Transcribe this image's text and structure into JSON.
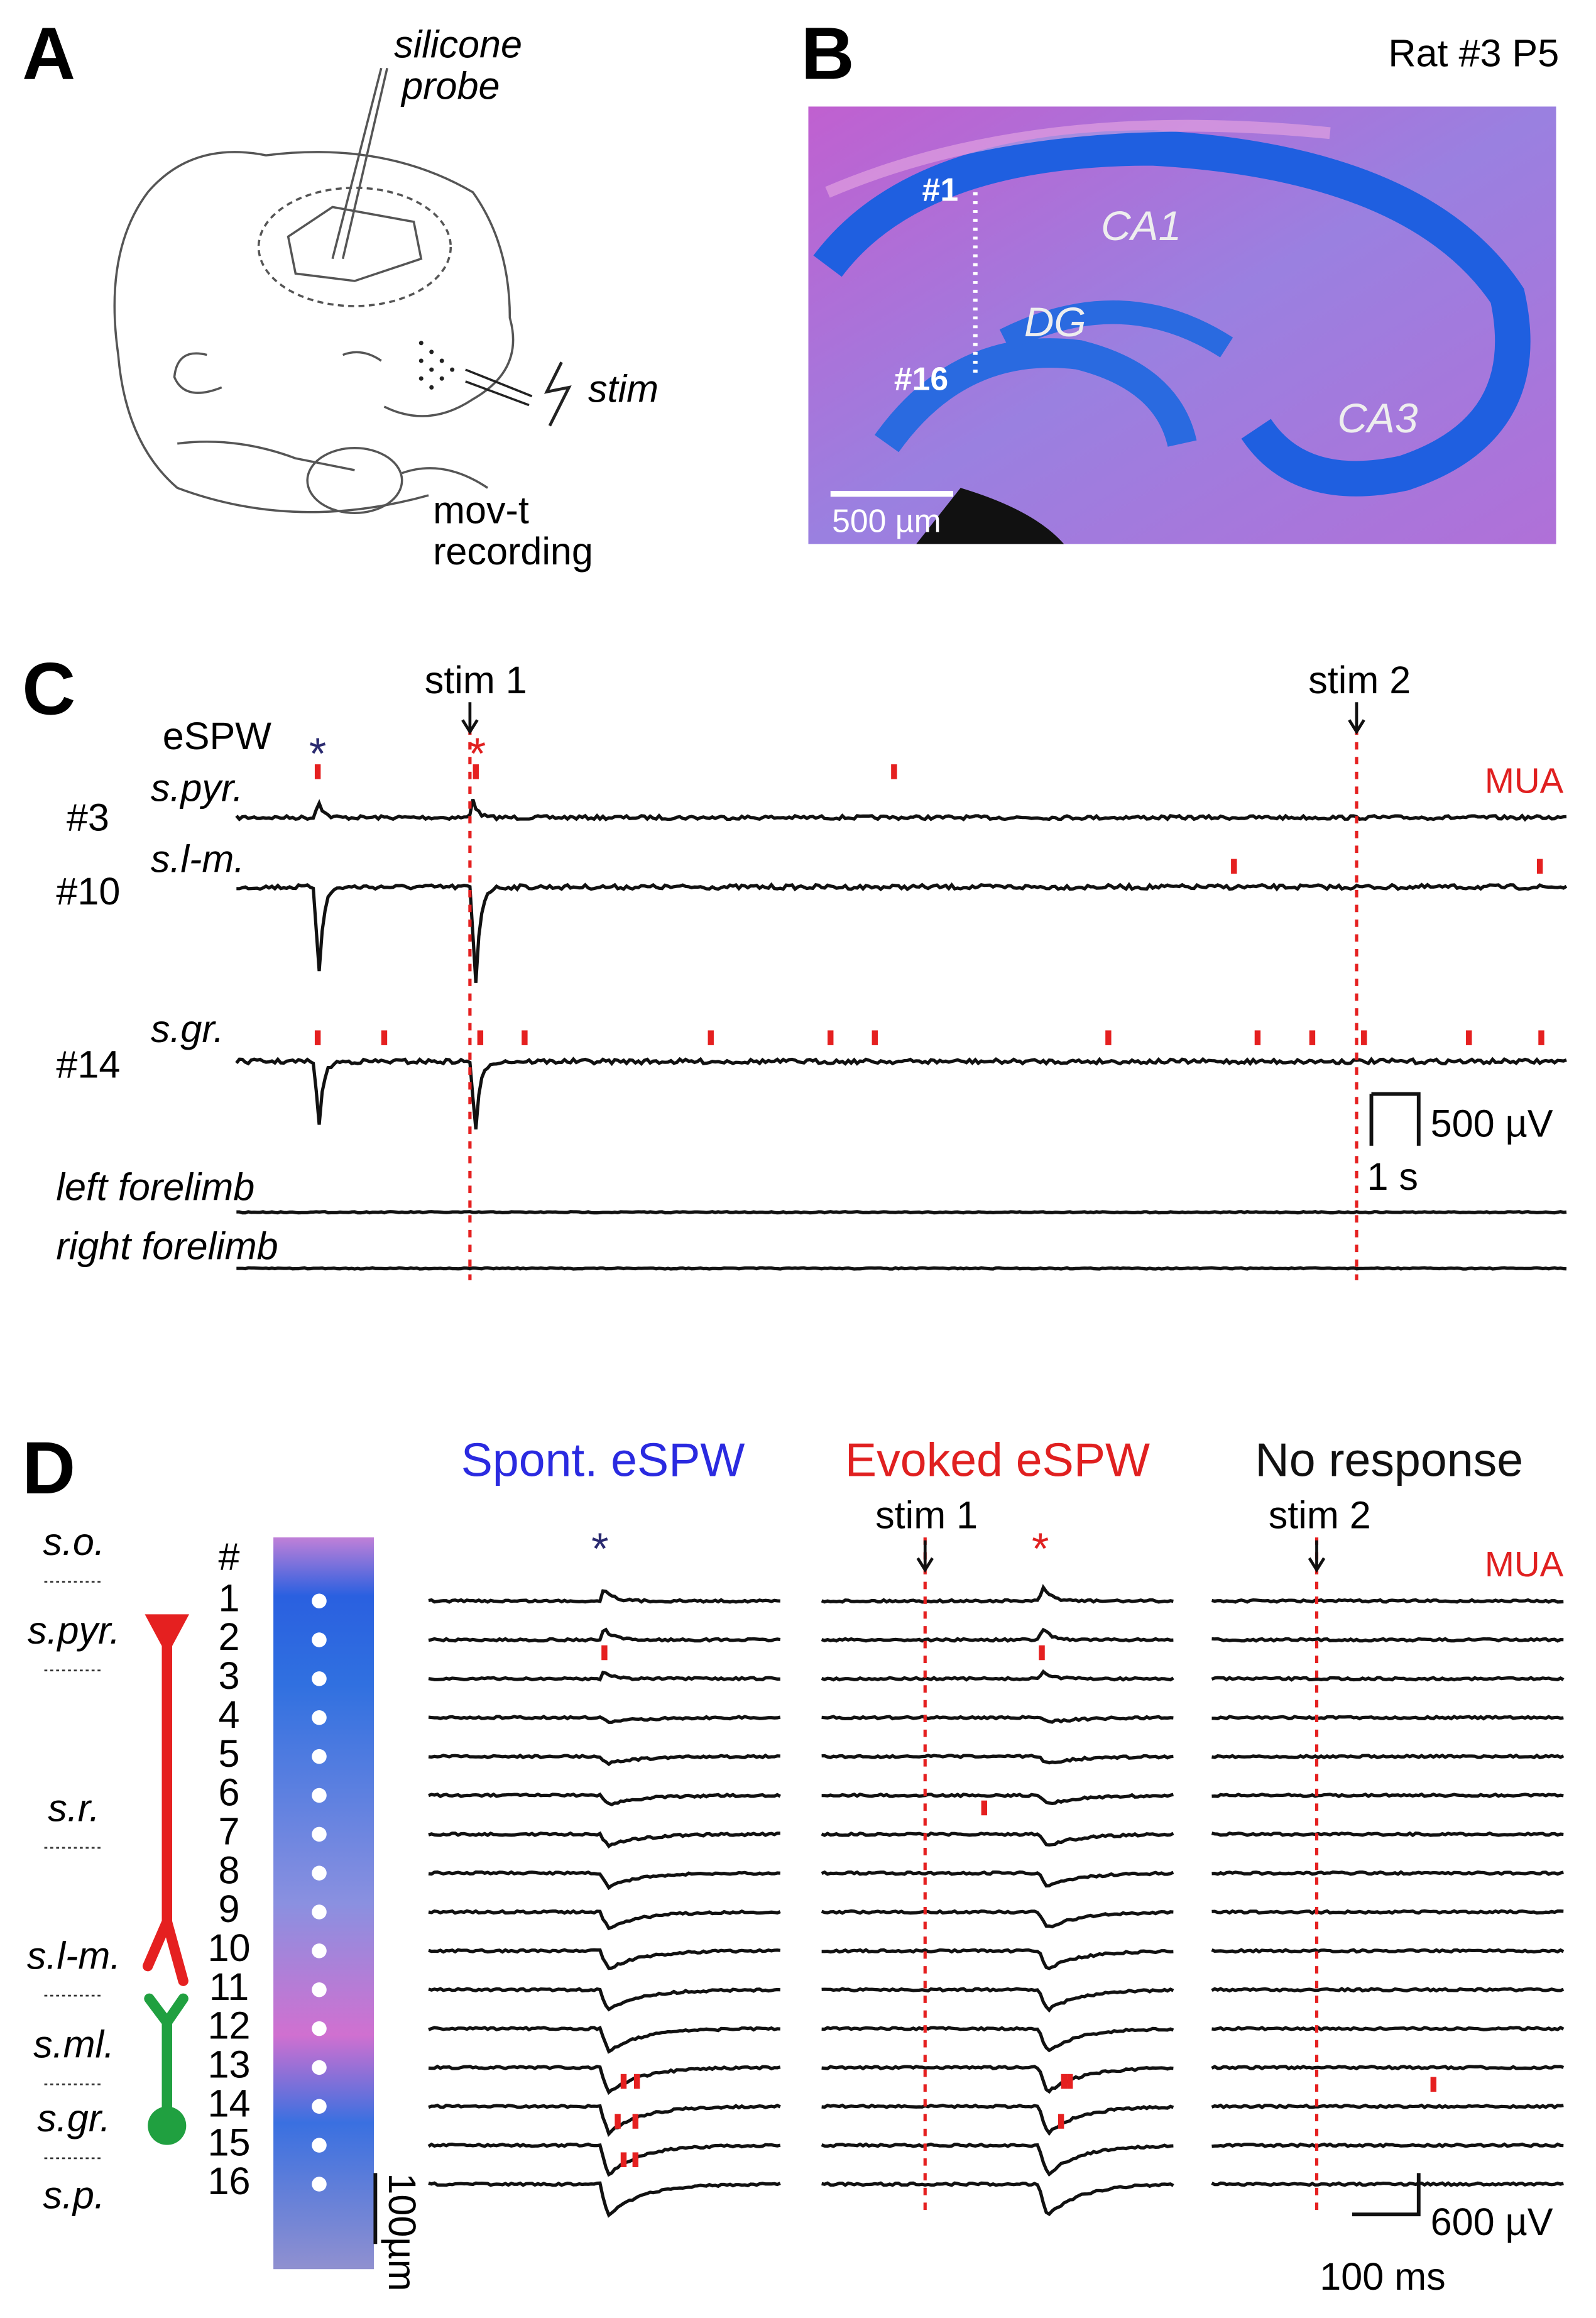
{
  "panel_a": {
    "label": "A",
    "probe": [
      "silicone",
      "probe"
    ],
    "stim": "stim",
    "recording": [
      "mov-t",
      "recording"
    ]
  },
  "panel_b": {
    "label": "B",
    "title": "Rat #3 P5",
    "site_top": "#1",
    "site_bottom": "#16",
    "regions": [
      "CA1",
      "DG",
      "CA3"
    ],
    "scale_bar": "500 µm"
  },
  "panel_c": {
    "label": "C",
    "stims": [
      "stim 1",
      "stim 2"
    ],
    "espw": "eSPW",
    "asterisks": [
      "*",
      "*"
    ],
    "mua": "MUA",
    "channels": [
      "#3",
      "#10",
      "#14"
    ],
    "layers": [
      "s.pyr.",
      "s.l-m.",
      "s.gr."
    ],
    "scale_v": "500 µV",
    "scale_t": "1 s",
    "limbs": [
      "left forelimb",
      "right forelimb"
    ]
  },
  "panel_d": {
    "label": "D",
    "layers": [
      "s.o.",
      "s.pyr.",
      "s.r.",
      "s.l-m.",
      "s.ml.",
      "s.gr.",
      "s.p."
    ],
    "channel_header": "#",
    "channels": [
      "1",
      "2",
      "3",
      "4",
      "5",
      "6",
      "7",
      "8",
      "9",
      "10",
      "11",
      "12",
      "13",
      "14",
      "15",
      "16"
    ],
    "depth_bar": "100µm",
    "titles": [
      "Spont. eSPW",
      "Evoked eSPW",
      "No response"
    ],
    "stims": [
      "stim 1",
      "stim 2"
    ],
    "asterisks": [
      "*",
      "*"
    ],
    "mua": "MUA",
    "scale_v": "600 µV",
    "scale_t": "100 ms"
  }
}
